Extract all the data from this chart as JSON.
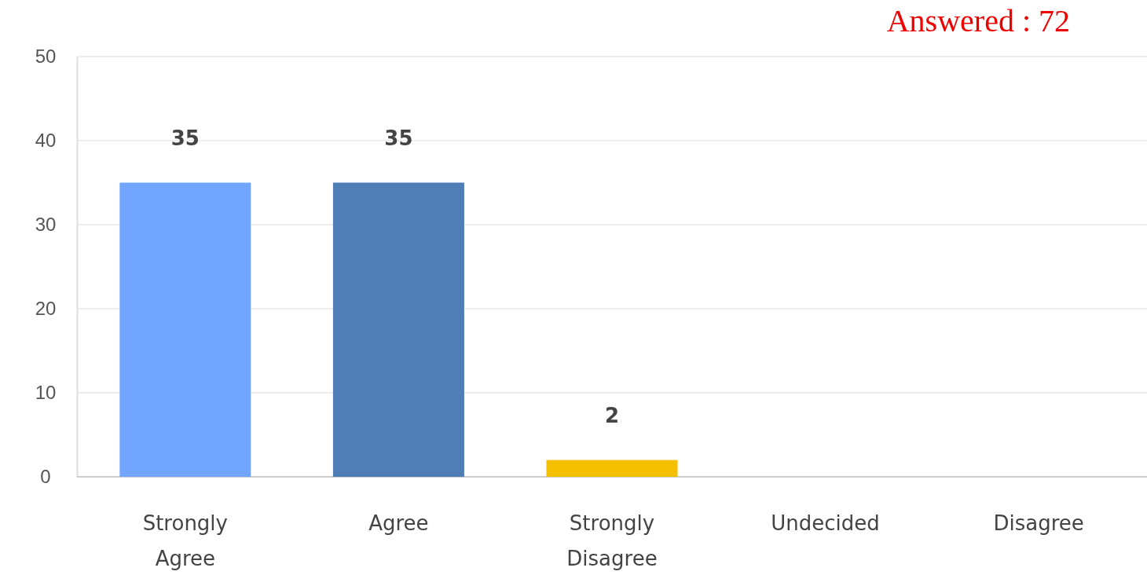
{
  "chart_data": {
    "type": "bar",
    "categories": [
      "Strongly Agree",
      "Agree",
      "Strongly Disagree",
      "Undecided",
      "Disagree"
    ],
    "values": [
      35,
      35,
      2,
      0,
      0
    ],
    "colors": [
      "#71a5ff",
      "#4f7db5",
      "#f5c000",
      "#4f7db5",
      "#4f7db5"
    ],
    "value_labels": [
      "35",
      "35",
      "2",
      null,
      null
    ],
    "ylim": [
      0,
      50
    ],
    "yticks": [
      0,
      10,
      20,
      30,
      40,
      50
    ],
    "grid": "y",
    "annotations": [
      "Answered : 72"
    ]
  }
}
